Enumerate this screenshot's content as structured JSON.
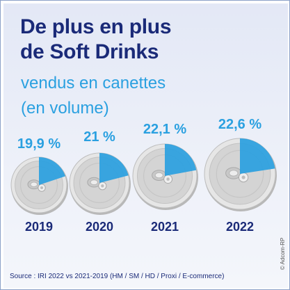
{
  "header": {
    "title_line1": "De plus en plus",
    "title_line2": "de Soft Drinks",
    "subtitle_line1": "vendus en canettes",
    "subtitle_line2": "(en volume)"
  },
  "footer": {
    "source": "Source : IRI 2022 vs 2021-2019 (HM / SM / HD / Proxi / E-commerce)",
    "credit": "© Adcom-RP"
  },
  "colors": {
    "title": "#1a2a78",
    "accent": "#2aa0e0",
    "can": "#d4d4d4",
    "background": "#e3e8f6"
  },
  "chart_data": {
    "type": "pie",
    "categories": [
      "2019",
      "2020",
      "2021",
      "2022"
    ],
    "values": [
      19.9,
      21,
      22.1,
      22.6
    ],
    "labels": [
      "19,9 %",
      "21 %",
      "22,1 %",
      "22,6 %"
    ],
    "unit": "%",
    "icon": "soda-can-top-icon"
  }
}
